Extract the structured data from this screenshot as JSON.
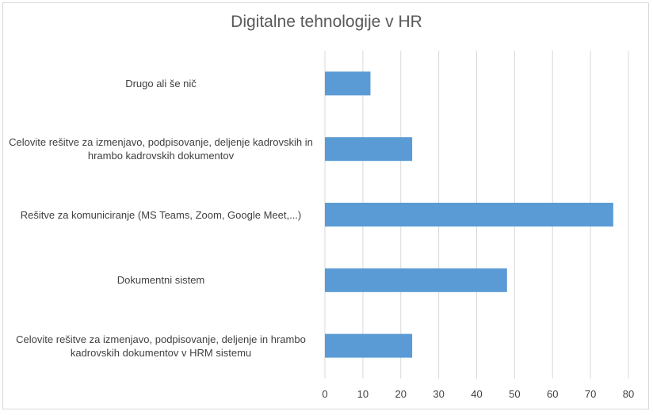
{
  "chart_data": {
    "type": "bar",
    "orientation": "horizontal",
    "title": "Digitalne tehnologije v HR",
    "categories": [
      "Drugo ali še nič",
      "Celovite rešitve za izmenjavo, podpisovanje, deljenje kadrovskih in hrambo kadrovskih dokumentov",
      "Rešitve za komuniciranje (MS Teams, Zoom, Google Meet,...)",
      "Dokumentni sistem",
      "Celovite rešitve za izmenjavo, podpisovanje, deljenje in hrambo kadrovskih dokumentov v HRM sistemu"
    ],
    "values": [
      12,
      23,
      76,
      48,
      23
    ],
    "xlim": [
      0,
      80
    ],
    "xticks": [
      "0",
      "10",
      "20",
      "30",
      "40",
      "50",
      "60",
      "70",
      "80"
    ],
    "grid": true,
    "bar_color": "#5b9bd5",
    "grid_color": "#d9d9d9"
  }
}
